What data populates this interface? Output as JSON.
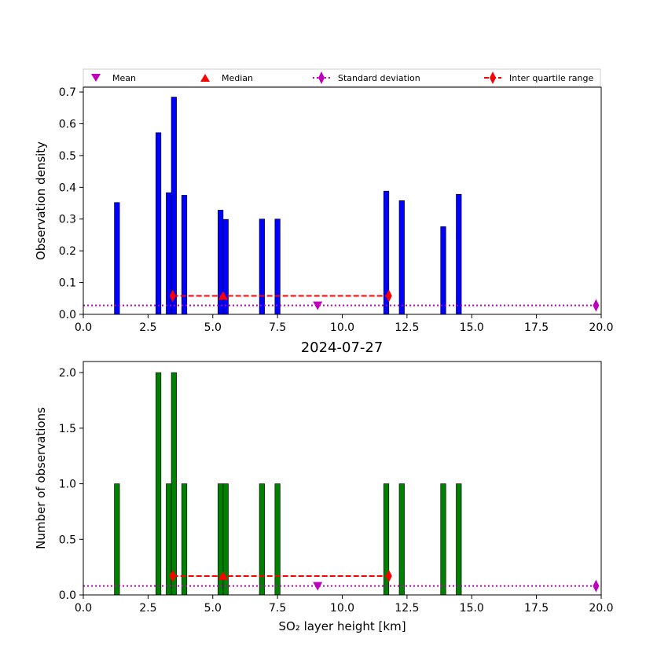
{
  "legend": {
    "entries": [
      {
        "label": "Mean",
        "marker": "triangle-down",
        "color": "#bf00bf"
      },
      {
        "label": "Median",
        "marker": "triangle-up",
        "color": "#ff0000"
      },
      {
        "label": "Standard deviation",
        "marker": "diamond-dotted-line",
        "color": "#bf00bf"
      },
      {
        "label": "Inter quartile range",
        "marker": "diamond-dashed-line",
        "color": "#ff0000"
      }
    ]
  },
  "chart_data": [
    {
      "type": "bar",
      "title": "",
      "xlabel": "",
      "ylabel": "Observation density",
      "xlim": [
        0,
        20
      ],
      "ylim": [
        0,
        0.715
      ],
      "xticks": [
        "0.0",
        "2.5",
        "5.0",
        "7.5",
        "10.0",
        "12.5",
        "15.0",
        "17.5",
        "20.0"
      ],
      "xtick_values": [
        0,
        2.5,
        5,
        7.5,
        10,
        12.5,
        15,
        17.5,
        20
      ],
      "yticks": [
        "0.0",
        "0.1",
        "0.2",
        "0.3",
        "0.4",
        "0.5",
        "0.6",
        "0.7"
      ],
      "ytick_values": [
        0,
        0.1,
        0.2,
        0.3,
        0.4,
        0.5,
        0.6,
        0.7
      ],
      "bar_color": "#0000ff",
      "bar_width": 0.2,
      "x": [
        1.3,
        2.9,
        3.3,
        3.5,
        3.9,
        5.3,
        5.5,
        6.9,
        7.5,
        11.7,
        12.3,
        13.9,
        14.5
      ],
      "values": [
        0.352,
        0.572,
        0.383,
        0.684,
        0.375,
        0.328,
        0.299,
        0.3,
        0.3,
        0.388,
        0.358,
        0.276,
        0.378
      ],
      "mean": {
        "x": 9.05,
        "y": 0.028
      },
      "median": {
        "x": 5.4,
        "y": 0.058
      },
      "std_line": {
        "y": 0.028,
        "x_start": 0,
        "x_end": 19.8,
        "marker_x": 19.8
      },
      "iqr_line": {
        "y": 0.058,
        "x_start": 3.45,
        "x_end": 11.8
      }
    },
    {
      "type": "bar",
      "title": "2024-07-27",
      "xlabel": "SO₂ layer height [km]",
      "ylabel": "Number of observations",
      "xlim": [
        0,
        20
      ],
      "ylim": [
        0,
        2.1
      ],
      "xticks": [
        "0.0",
        "2.5",
        "5.0",
        "7.5",
        "10.0",
        "12.5",
        "15.0",
        "17.5",
        "20.0"
      ],
      "xtick_values": [
        0,
        2.5,
        5,
        7.5,
        10,
        12.5,
        15,
        17.5,
        20
      ],
      "yticks": [
        "0.0",
        "0.5",
        "1.0",
        "1.5",
        "2.0"
      ],
      "ytick_values": [
        0,
        0.5,
        1.0,
        1.5,
        2.0
      ],
      "bar_color": "#008000",
      "bar_width": 0.2,
      "x": [
        1.3,
        2.9,
        3.3,
        3.5,
        3.9,
        5.3,
        5.5,
        6.9,
        7.5,
        11.7,
        12.3,
        13.9,
        14.5
      ],
      "values": [
        1,
        2,
        1,
        2,
        1,
        1,
        1,
        1,
        1,
        1,
        1,
        1,
        1
      ],
      "mean": {
        "x": 9.05,
        "y": 0.08
      },
      "median": {
        "x": 5.4,
        "y": 0.17
      },
      "std_line": {
        "y": 0.08,
        "x_start": 0,
        "x_end": 19.8,
        "marker_x": 19.8
      },
      "iqr_line": {
        "y": 0.17,
        "x_start": 3.45,
        "x_end": 11.8
      }
    }
  ]
}
